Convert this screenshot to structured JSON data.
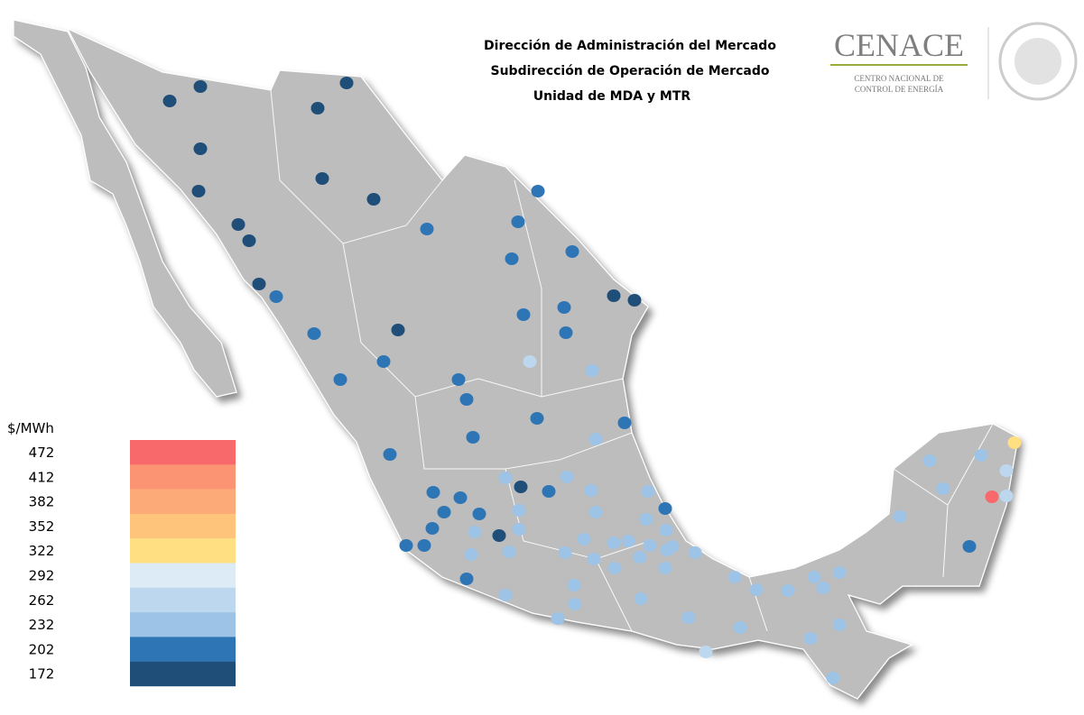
{
  "header": {
    "lines": [
      "Dirección de Administración del Mercado",
      "Subdirección de Operación de Mercado",
      "Unidad de MDA y MTR"
    ]
  },
  "logo": {
    "name": "CENACE",
    "subtitle": [
      "CENTRO NACIONAL DE",
      "CONTROL DE ENERGÍA"
    ]
  },
  "legend": {
    "unit": "$/MWh",
    "entries": [
      {
        "label": 472,
        "color": "#f8696b"
      },
      {
        "label": 412,
        "color": "#fa9473"
      },
      {
        "label": 382,
        "color": "#fcaa78"
      },
      {
        "label": 352,
        "color": "#fec47c"
      },
      {
        "label": 322,
        "color": "#ffdf81"
      },
      {
        "label": 292,
        "color": "#ddebf7"
      },
      {
        "label": 262,
        "color": "#bdd7ee"
      },
      {
        "label": 232,
        "color": "#9dc3e6"
      },
      {
        "label": 202,
        "color": "#2e75b6"
      },
      {
        "label": 172,
        "color": "#1f4e79"
      }
    ]
  },
  "sites": [
    172,
    172,
    172,
    172,
    172,
    172,
    172,
    172,
    172,
    172,
    172,
    172,
    172,
    172,
    202,
    172,
    202,
    202,
    202,
    202,
    172,
    202,
    202,
    202,
    202,
    202,
    202,
    202,
    202,
    202,
    202,
    202,
    202,
    202,
    202,
    202,
    202,
    202,
    202,
    202,
    202,
    202,
    202,
    202,
    202,
    262,
    232,
    232,
    232,
    232,
    232,
    232,
    232,
    232,
    232,
    232,
    232,
    232,
    232,
    232,
    232,
    232,
    232,
    232,
    232,
    232,
    232,
    232,
    232,
    232,
    232,
    232,
    232,
    232,
    232,
    232,
    232,
    232,
    232,
    232,
    232,
    232,
    232,
    232,
    232,
    232,
    232,
    262,
    232,
    232,
    232,
    232,
    232,
    262,
    262,
    322,
    472
  ]
}
